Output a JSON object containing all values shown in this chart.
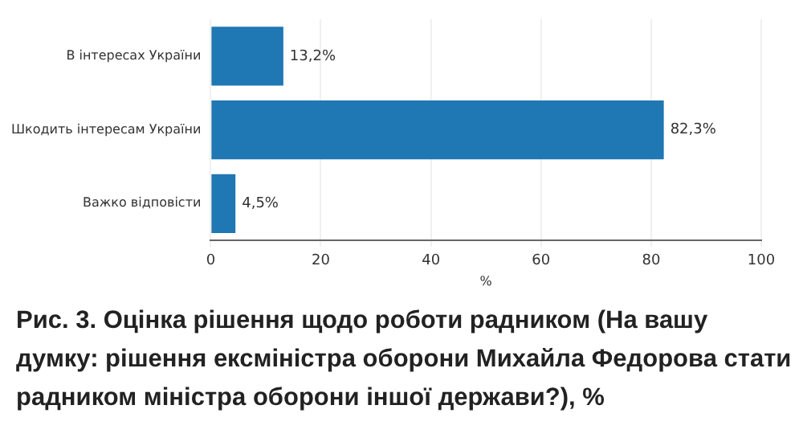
{
  "chart_data": {
    "type": "bar",
    "orientation": "horizontal",
    "title": "Рис. 3. Оцінка рішення щодо роботи радником (На вашу думку: рішення ексміністра оборони Михайла Федорова стати радником міністра оборони іншої держави?), %",
    "xlabel": "%",
    "categories": [
      "В інтересах України",
      "Шкодить інтересам України",
      "Важко відповісти"
    ],
    "values": [
      13.2,
      82.3,
      4.5
    ],
    "value_labels": [
      "13,2%",
      "82,3%",
      "4,5%"
    ],
    "color": "#1f77b4",
    "xlim": [
      0,
      100
    ],
    "xticks": [
      0,
      20,
      40,
      60,
      80,
      100
    ],
    "grid": "x"
  }
}
